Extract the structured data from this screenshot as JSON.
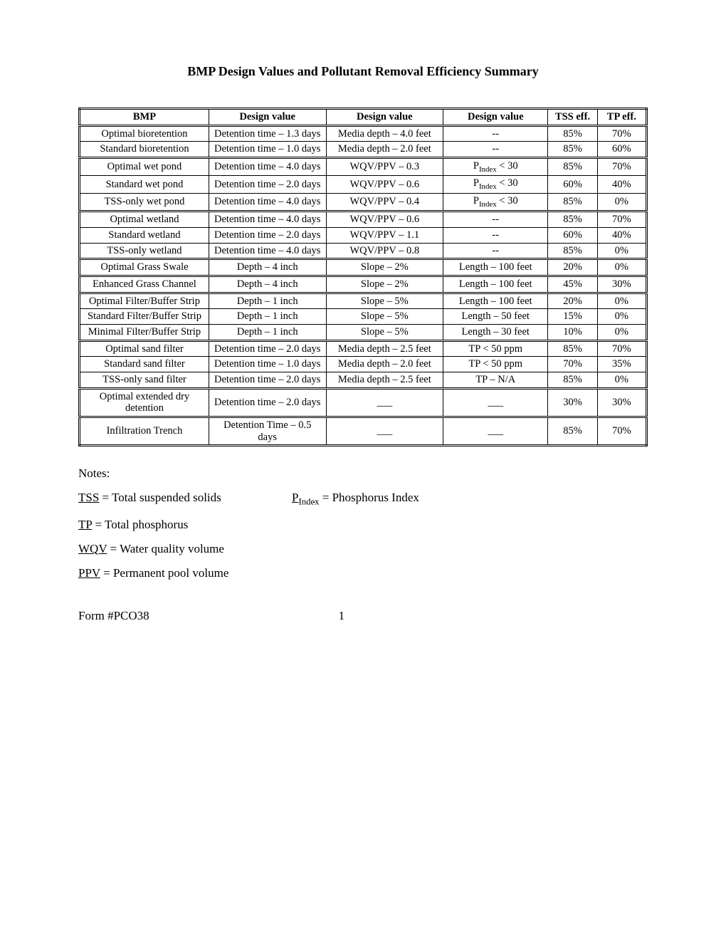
{
  "title": "BMP Design Values and Pollutant Removal Efficiency Summary",
  "columns": [
    "BMP",
    "Design value",
    "Design value",
    "Design value",
    "TSS eff.",
    "TP eff."
  ],
  "sections": [
    {
      "rows": [
        {
          "bmp": "Optimal bioretention",
          "dv1": "Detention time – 1.3 days",
          "dv2": "Media depth – 4.0 feet",
          "dv3": "--",
          "tss": "85%",
          "tp": "70%"
        },
        {
          "bmp": "Standard bioretention",
          "dv1": "Detention time – 1.0 days",
          "dv2": "Media depth – 2.0 feet",
          "dv3": "--",
          "tss": "85%",
          "tp": "60%"
        }
      ]
    },
    {
      "rows": [
        {
          "bmp": "Optimal wet pond",
          "dv1": "Detention time – 4.0 days",
          "dv2": "WQV/PPV – 0.3",
          "dv3_html": "P<sub>Index</sub> < 30",
          "tss": "85%",
          "tp": "70%"
        },
        {
          "bmp": "Standard wet pond",
          "dv1": "Detention time – 2.0 days",
          "dv2": "WQV/PPV – 0.6",
          "dv3_html": "P<sub>Index</sub> < 30",
          "tss": "60%",
          "tp": "40%"
        },
        {
          "bmp": "TSS-only wet pond",
          "dv1": "Detention time – 4.0 days",
          "dv2": "WQV/PPV – 0.4",
          "dv3_html": "P<sub>Index</sub> < 30",
          "tss": "85%",
          "tp": "0%"
        }
      ]
    },
    {
      "rows": [
        {
          "bmp": "Optimal wetland",
          "dv1": "Detention time – 4.0 days",
          "dv2": "WQV/PPV – 0.6",
          "dv3": "--",
          "tss": "85%",
          "tp": "70%"
        },
        {
          "bmp": "Standard wetland",
          "dv1": "Detention time – 2.0 days",
          "dv2": "WQV/PPV – 1.1",
          "dv3": "--",
          "tss": "60%",
          "tp": "40%"
        },
        {
          "bmp": "TSS-only wetland",
          "dv1": "Detention time – 4.0 days",
          "dv2": "WQV/PPV – 0.8",
          "dv3": "--",
          "tss": "85%",
          "tp": "0%"
        }
      ]
    },
    {
      "rows": [
        {
          "bmp": "Optimal Grass Swale",
          "dv1": "Depth – 4 inch",
          "dv2": "Slope – 2%",
          "dv3": "Length – 100 feet",
          "tss": "20%",
          "tp": "0%"
        }
      ]
    },
    {
      "rows": [
        {
          "bmp": "Enhanced Grass Channel",
          "dv1": "Depth – 4 inch",
          "dv2": "Slope – 2%",
          "dv3": "Length – 100 feet",
          "tss": "45%",
          "tp": "30%"
        }
      ]
    },
    {
      "rows": [
        {
          "bmp": "Optimal Filter/Buffer Strip",
          "dv1": "Depth – 1 inch",
          "dv2": "Slope – 5%",
          "dv3": "Length – 100 feet",
          "tss": "20%",
          "tp": "0%"
        },
        {
          "bmp": "Standard Filter/Buffer Strip",
          "dv1": "Depth – 1 inch",
          "dv2": "Slope – 5%",
          "dv3": "Length – 50 feet",
          "tss": "15%",
          "tp": "0%"
        },
        {
          "bmp": "Minimal Filter/Buffer Strip",
          "dv1": "Depth – 1 inch",
          "dv2": "Slope – 5%",
          "dv3": "Length – 30 feet",
          "tss": "10%",
          "tp": "0%"
        }
      ]
    },
    {
      "rows": [
        {
          "bmp": "Optimal sand filter",
          "dv1": "Detention time – 2.0 days",
          "dv2": "Media depth – 2.5 feet",
          "dv3": "TP < 50 ppm",
          "tss": "85%",
          "tp": "70%"
        },
        {
          "bmp": "Standard sand filter",
          "dv1": "Detention time – 1.0 days",
          "dv2": "Media depth – 2.0 feet",
          "dv3": "TP < 50 ppm",
          "tss": "70%",
          "tp": "35%"
        },
        {
          "bmp": "TSS-only sand filter",
          "dv1": "Detention time – 2.0 days",
          "dv2": "Media depth – 2.5 feet",
          "dv3": "TP – N/A",
          "tss": "85%",
          "tp": "0%"
        }
      ]
    },
    {
      "rows": [
        {
          "bmp": "Optimal extended dry detention",
          "dv1": "Detention time – 2.0 days",
          "dv2": "___",
          "dv3": "___",
          "tss": "30%",
          "tp": "30%"
        }
      ]
    },
    {
      "rows": [
        {
          "bmp": "Infiltration Trench",
          "dv1": "Detention Time – 0.5 days",
          "dv2": "___",
          "dv3": "___",
          "tss": "85%",
          "tp": "70%"
        }
      ]
    }
  ],
  "notes": {
    "heading": "Notes:",
    "items": [
      {
        "abbr_html": "<span class=\"u\">TSS</span> = Total suspended solids",
        "right_html": "<span class=\"u\">P<span class=\"sub\">Index</span></span> = Phosphorus Index"
      },
      {
        "abbr_html": "<span class=\"u\">TP</span> = Total phosphorus"
      },
      {
        "abbr_html": "<span class=\"u\">WQV</span> = Water quality volume"
      },
      {
        "abbr_html": "<span class=\"u\">PPV</span> = Permanent pool volume"
      }
    ]
  },
  "footer": {
    "form": "Form #PCO38",
    "page": "1"
  }
}
